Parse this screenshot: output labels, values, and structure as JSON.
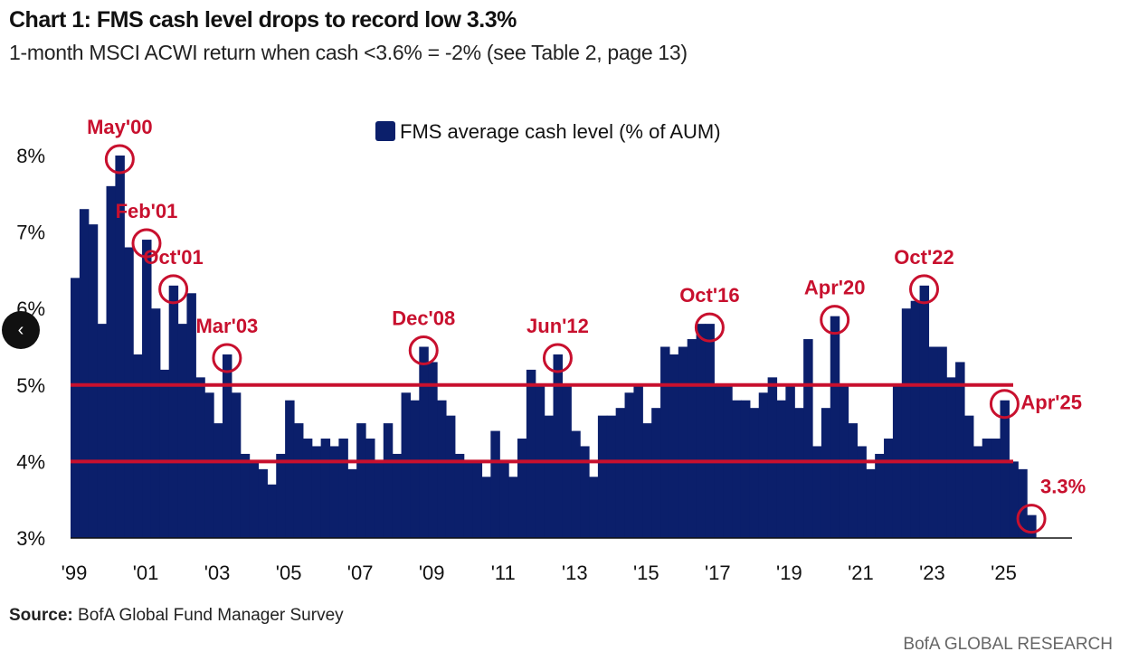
{
  "header": {
    "title": "Chart 1: FMS cash level drops to record low 3.3%",
    "subtitle": "1-month MSCI ACWI return when cash <3.6% = -2% (see Table 2, page 13)"
  },
  "footer": {
    "source_label": "Source:",
    "source_text": " BofA Global Fund Manager Survey",
    "brand": "BofA GLOBAL RESEARCH"
  },
  "nav": {
    "prev_icon": "chevron-left-icon",
    "prev_glyph": "‹"
  },
  "colors": {
    "bar": "#0b1f6b",
    "accent": "#c8102e"
  },
  "chart_data": {
    "type": "bar",
    "title": "Chart 1: FMS cash level drops to record low 3.3%",
    "legend": "FMS average cash level (% of AUM)",
    "legend_position": "top-center",
    "xlabel": "",
    "ylabel": "",
    "ylim": [
      3,
      8.3
    ],
    "yticks": [
      3,
      4,
      5,
      6,
      7,
      8
    ],
    "ytick_labels": [
      "3%",
      "4%",
      "5%",
      "6%",
      "7%",
      "8%"
    ],
    "start_year": 1999,
    "frequency": "quarterly",
    "xticks": [
      1999,
      2001,
      2003,
      2005,
      2007,
      2009,
      2011,
      2013,
      2015,
      2017,
      2019,
      2021,
      2023,
      2025
    ],
    "xtick_labels": [
      "'99",
      "'01",
      "'03",
      "'05",
      "'07",
      "'09",
      "'11",
      "'13",
      "'15",
      "'17",
      "'19",
      "'21",
      "'23",
      "'25"
    ],
    "values": [
      6.4,
      7.3,
      7.1,
      5.8,
      7.6,
      8.0,
      6.8,
      5.4,
      6.9,
      6.0,
      5.2,
      6.3,
      5.8,
      6.2,
      5.1,
      4.9,
      4.5,
      5.4,
      4.9,
      4.1,
      4.0,
      3.9,
      3.7,
      4.1,
      4.8,
      4.5,
      4.3,
      4.2,
      4.3,
      4.2,
      4.3,
      3.9,
      4.5,
      4.3,
      4.0,
      4.5,
      4.1,
      4.9,
      4.8,
      5.5,
      5.3,
      4.8,
      4.6,
      4.1,
      4.0,
      4.0,
      3.8,
      4.4,
      4.0,
      3.8,
      4.3,
      5.2,
      5.0,
      4.6,
      5.4,
      5.0,
      4.4,
      4.2,
      3.8,
      4.6,
      4.6,
      4.7,
      4.9,
      5.0,
      4.5,
      4.7,
      5.5,
      5.4,
      5.5,
      5.6,
      5.8,
      5.8,
      5.0,
      5.0,
      4.8,
      4.8,
      4.7,
      4.9,
      5.1,
      4.8,
      5.0,
      4.7,
      5.6,
      4.2,
      4.7,
      5.9,
      5.0,
      4.5,
      4.2,
      3.9,
      4.1,
      4.3,
      5.0,
      6.0,
      6.1,
      6.3,
      5.5,
      5.5,
      5.1,
      5.3,
      4.6,
      4.2,
      4.3,
      4.3,
      4.8,
      4.0,
      3.9,
      3.3
    ],
    "reference_lines": [
      5,
      4
    ],
    "annotations": [
      {
        "label": "May'00",
        "index": 5,
        "value": 8.0
      },
      {
        "label": "Feb'01",
        "index": 8,
        "value": 6.9
      },
      {
        "label": "Oct'01",
        "index": 11,
        "value": 6.3
      },
      {
        "label": "Mar'03",
        "index": 17,
        "value": 5.4
      },
      {
        "label": "Dec'08",
        "index": 39,
        "value": 5.5
      },
      {
        "label": "Jun'12",
        "index": 54,
        "value": 5.4
      },
      {
        "label": "Oct'16",
        "index": 71,
        "value": 5.8
      },
      {
        "label": "Apr'20",
        "index": 85,
        "value": 5.9
      },
      {
        "label": "Oct'22",
        "index": 95,
        "value": 6.3
      },
      {
        "label": "Apr'25",
        "index": 104,
        "value": 4.8
      },
      {
        "label": "3.3%",
        "index": 107,
        "value": 3.3
      }
    ]
  }
}
